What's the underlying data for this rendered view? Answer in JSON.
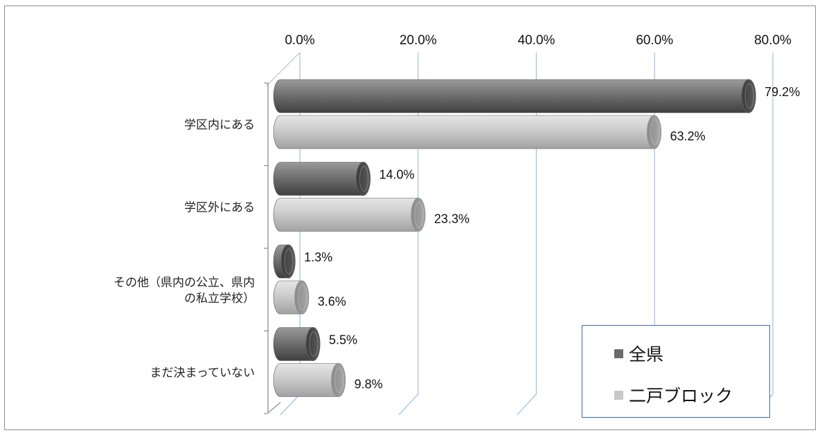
{
  "chart_data": {
    "type": "bar",
    "orientation": "horizontal",
    "categories": [
      "学区内にある",
      "学区外にある",
      "その他（県内の公立、県内の私立学校）",
      "まだ決まっていない"
    ],
    "category_lines": [
      [
        "学区内にある"
      ],
      [
        "学区外にある"
      ],
      [
        "その他（県内の公立、県内",
        "の私立学校）"
      ],
      [
        "まだ決まっていない"
      ]
    ],
    "series": [
      {
        "name": "全県",
        "values": [
          79.2,
          14.0,
          1.3,
          5.5
        ],
        "labels": [
          "79.2%",
          "14.0%",
          "1.3%",
          "5.5%"
        ],
        "color": "#6b6b6b"
      },
      {
        "name": "二戸ブロック",
        "values": [
          63.2,
          23.3,
          3.6,
          9.8
        ],
        "labels": [
          "63.2%",
          "23.3%",
          "3.6%",
          "9.8%"
        ],
        "color": "#c8c8c8"
      }
    ],
    "x_ticks": [
      "0.0%",
      "20.0%",
      "40.0%",
      "60.0%",
      "80.0%"
    ],
    "xlim": [
      0,
      80
    ],
    "legend_position": "bottom-right",
    "grid": true,
    "style": "3d-cylinder"
  }
}
